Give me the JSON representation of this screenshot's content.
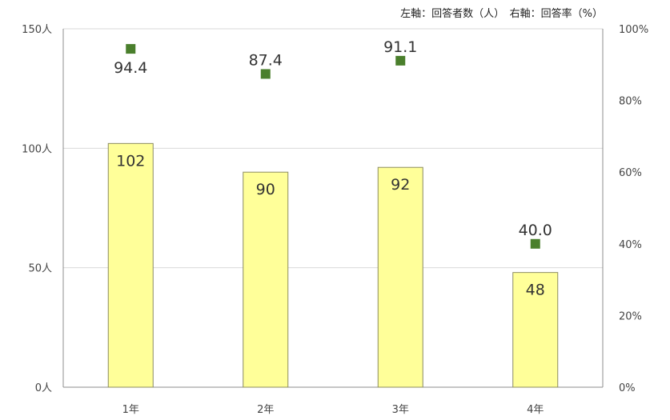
{
  "legend_note": "左軸：回答者数（人）　右軸：回答率（%）",
  "colors": {
    "bar_fill": "#ffff99",
    "bar_stroke": "#8c8c60",
    "marker": "#4a7f2c",
    "grid": "#d9d9d9",
    "axis": "#8c8c8c"
  },
  "chart_data": {
    "type": "bar",
    "categories": [
      "1年",
      "2年",
      "3年",
      "4年"
    ],
    "series": [
      {
        "axis": "left",
        "kind": "bar",
        "values": [
          102,
          90,
          92,
          48
        ],
        "labels": [
          "102",
          "90",
          "92",
          "48"
        ]
      },
      {
        "axis": "right",
        "kind": "scatter",
        "values": [
          94.4,
          87.4,
          91.1,
          40.0
        ],
        "labels": [
          "94.4",
          "87.4",
          "91.1",
          "40.0"
        ]
      }
    ],
    "y_left": {
      "ylim": [
        0,
        150
      ],
      "ticks": [
        0,
        50,
        100,
        150
      ],
      "tick_labels": [
        "0人",
        "50人",
        "100人",
        "150人"
      ]
    },
    "y_right": {
      "ylim": [
        0,
        100
      ],
      "ticks": [
        0,
        20,
        40,
        60,
        80,
        100
      ],
      "tick_labels": [
        "0%",
        "20%",
        "40%",
        "60%",
        "80%",
        "100%"
      ]
    },
    "grid": true
  }
}
